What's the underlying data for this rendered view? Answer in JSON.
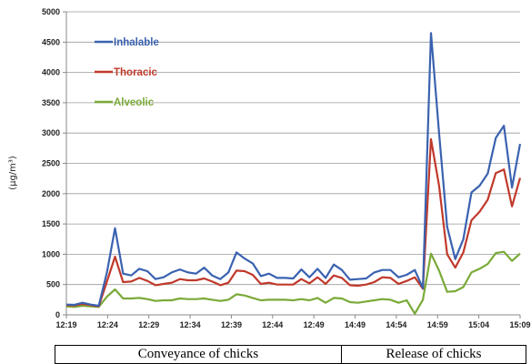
{
  "chart_data": {
    "type": "line",
    "ylabel": "(µg/m³)",
    "ylim": [
      0,
      5000
    ],
    "yticks": [
      0,
      500,
      1000,
      1500,
      2000,
      2500,
      3000,
      3500,
      4000,
      4500,
      5000
    ],
    "xtick_labels": [
      "12:19",
      "12:24",
      "12:29",
      "12:34",
      "12:39",
      "12:44",
      "12:49",
      "14:49",
      "14:54",
      "14:59",
      "15:04",
      "15:09"
    ],
    "grid": "horizontal",
    "legend_position": "top-left",
    "series": [
      {
        "name": "Inhalable",
        "color": "#3a62b0",
        "values": [
          170,
          165,
          200,
          170,
          150,
          700,
          1430,
          680,
          650,
          760,
          720,
          590,
          620,
          700,
          750,
          700,
          680,
          780,
          650,
          590,
          700,
          1030,
          930,
          850,
          640,
          680,
          610,
          610,
          600,
          750,
          620,
          760,
          610,
          830,
          740,
          580,
          590,
          600,
          700,
          740,
          740,
          620,
          660,
          740,
          440,
          4650,
          3000,
          1450,
          920,
          1250,
          2020,
          2130,
          2330,
          2920,
          3120,
          2100,
          2820
        ]
      },
      {
        "name": "Thoracic",
        "color": "#c0392b",
        "values": [
          160,
          155,
          180,
          160,
          140,
          550,
          960,
          540,
          550,
          610,
          560,
          490,
          510,
          530,
          590,
          570,
          570,
          600,
          550,
          490,
          530,
          730,
          720,
          660,
          510,
          530,
          500,
          500,
          500,
          590,
          520,
          620,
          510,
          650,
          610,
          490,
          480,
          500,
          540,
          620,
          610,
          510,
          560,
          620,
          430,
          2900,
          2130,
          1000,
          780,
          1030,
          1560,
          1700,
          1900,
          2340,
          2400,
          1790,
          2260
        ]
      },
      {
        "name": "Alveolic",
        "color": "#7aaa38",
        "values": [
          140,
          130,
          150,
          140,
          130,
          300,
          420,
          270,
          270,
          280,
          260,
          230,
          240,
          240,
          270,
          260,
          260,
          270,
          250,
          230,
          250,
          340,
          320,
          280,
          240,
          250,
          250,
          250,
          240,
          260,
          240,
          280,
          200,
          280,
          270,
          210,
          200,
          220,
          240,
          260,
          250,
          200,
          240,
          20,
          250,
          1010,
          730,
          380,
          390,
          460,
          700,
          760,
          840,
          1020,
          1040,
          890,
          1010
        ]
      }
    ]
  },
  "phases": [
    {
      "label": "Conveyance of chicks"
    },
    {
      "label": "Release of chicks"
    }
  ]
}
